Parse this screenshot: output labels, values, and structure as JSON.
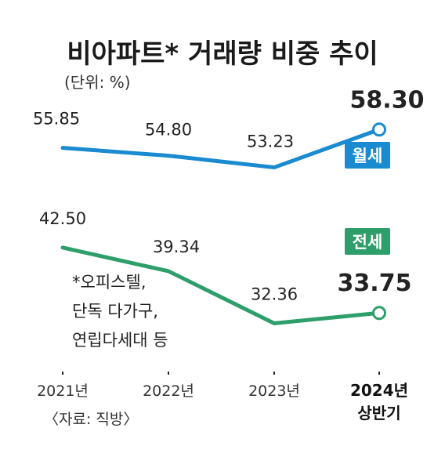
{
  "chart_data": {
    "type": "line",
    "title": "비아파트* 거래량 비중 추이",
    "unit": "(단위: %)",
    "categories": [
      "2021년",
      "2022년",
      "2023년",
      "2024년 상반기"
    ],
    "series": [
      {
        "name": "월세",
        "values": [
          55.85,
          54.8,
          53.23,
          58.3
        ],
        "labels": [
          "55.85",
          "54.80",
          "53.23",
          "58.30"
        ],
        "color": "#1a8bd0"
      },
      {
        "name": "전세",
        "values": [
          42.5,
          39.34,
          32.36,
          33.75
        ],
        "labels": [
          "42.50",
          "39.34",
          "32.36",
          "33.75"
        ],
        "color": "#2e9e6a"
      }
    ],
    "note": [
      "*오피스텔,",
      "단독 다가구,",
      "연립다세대 등"
    ],
    "source": "〈자료: 직방〉",
    "last_category_label": [
      "2024년",
      "상반기"
    ],
    "ylim": [
      28,
      62
    ],
    "grid": false
  }
}
